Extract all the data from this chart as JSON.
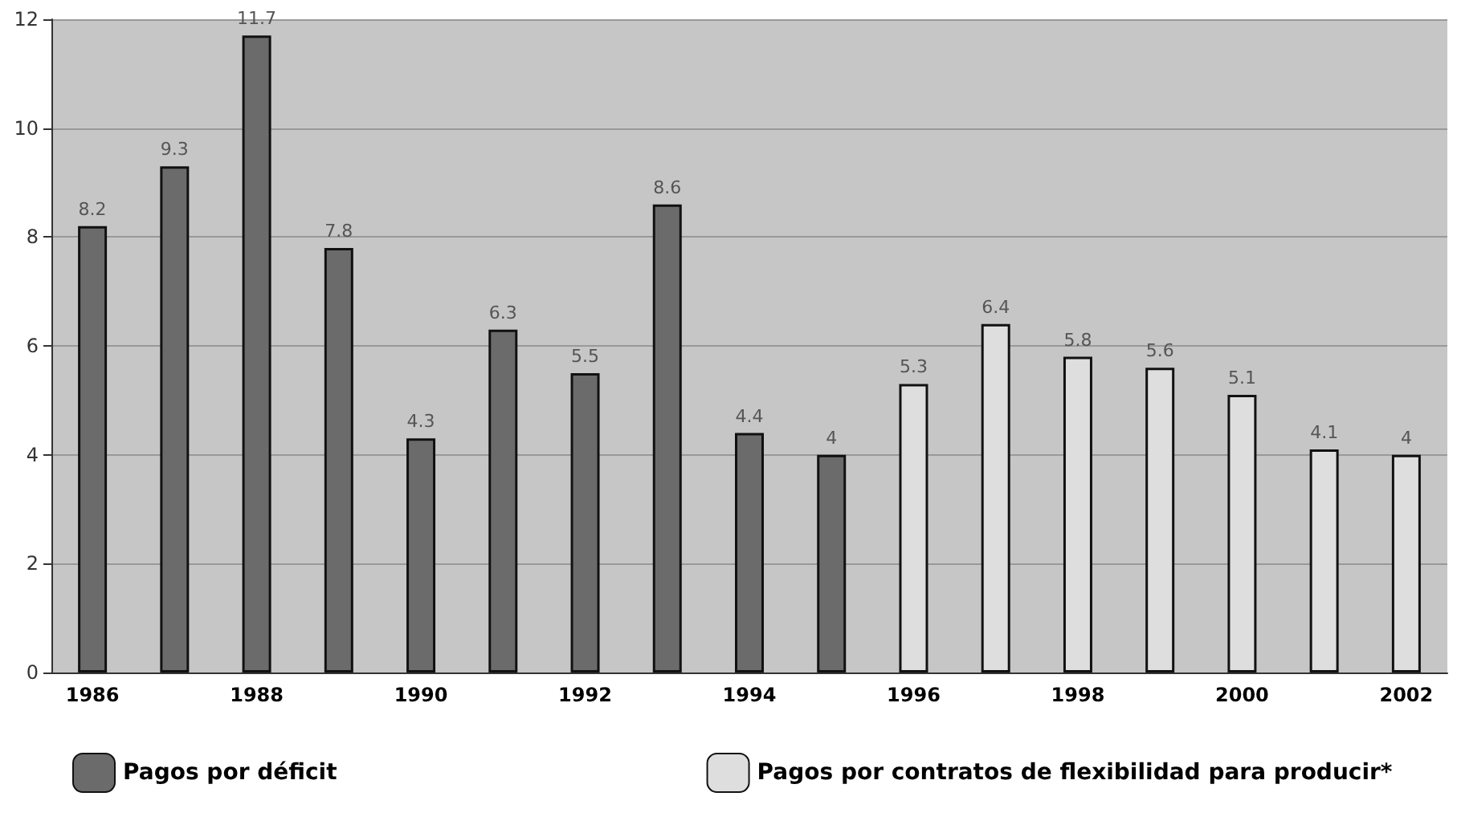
{
  "chart_data": {
    "type": "bar",
    "categories": [
      "1986",
      null,
      "1988",
      null,
      "1990",
      null,
      "1992",
      null,
      "1994",
      null,
      "1996",
      null,
      "1998",
      null,
      "2000",
      null,
      "2002"
    ],
    "series": [
      {
        "name": "Pagos por déficit",
        "color": "#6b6b6b",
        "values": [
          8.2,
          9.3,
          11.7,
          7.8,
          4.3,
          6.3,
          5.5,
          8.6,
          4.4,
          4,
          null,
          null,
          null,
          null,
          null,
          null,
          null
        ]
      },
      {
        "name": "Pagos por contratos de flexibilidad para producir*",
        "color": "#dedede",
        "values": [
          null,
          null,
          null,
          null,
          null,
          null,
          null,
          null,
          null,
          null,
          5.3,
          6.4,
          5.8,
          5.6,
          5.1,
          4.1,
          4
        ]
      }
    ],
    "ylim": [
      0,
      12
    ],
    "yticks": [
      0,
      2,
      4,
      6,
      8,
      10,
      12
    ],
    "grid": "y",
    "legend": "bottom",
    "data_labels": true
  }
}
